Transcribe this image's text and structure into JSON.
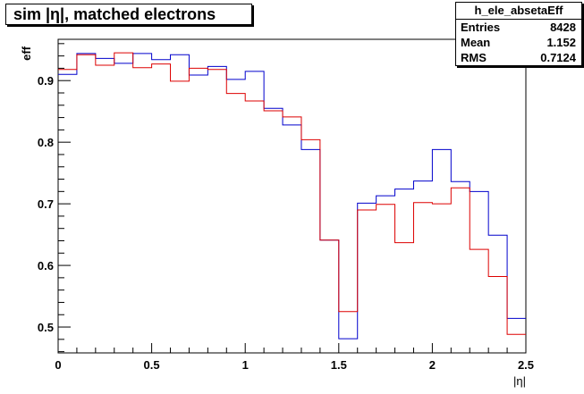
{
  "chart_data": {
    "type": "line",
    "title": "sim |η|, matched electrons",
    "xlabel": "|η|",
    "ylabel": "eff",
    "xlim": [
      0,
      2.5
    ],
    "ylim": [
      0.458,
      0.967
    ],
    "x_ticks": [
      {
        "value": 0,
        "label": "0"
      },
      {
        "value": 0.5,
        "label": "0.5"
      },
      {
        "value": 1,
        "label": "1"
      },
      {
        "value": 1.5,
        "label": "1.5"
      },
      {
        "value": 2,
        "label": "2"
      },
      {
        "value": 2.5,
        "label": "2.5"
      }
    ],
    "y_ticks": [
      {
        "value": 0.5,
        "label": "0.5"
      },
      {
        "value": 0.6,
        "label": "0.6"
      },
      {
        "value": 0.7,
        "label": "0.7"
      },
      {
        "value": 0.8,
        "label": "0.8"
      },
      {
        "value": 0.9,
        "label": "0.9"
      }
    ],
    "bin_edges": [
      0,
      0.1,
      0.2,
      0.3,
      0.4,
      0.5,
      0.6,
      0.7,
      0.8,
      0.9,
      1.0,
      1.1,
      1.2,
      1.3,
      1.4,
      1.5,
      1.6,
      1.7,
      1.8,
      1.9,
      2.0,
      2.1,
      2.2,
      2.3,
      2.4,
      2.5
    ],
    "series": [
      {
        "color": "#0000cc",
        "values": [
          0.91,
          0.944,
          0.936,
          0.928,
          0.944,
          0.934,
          0.942,
          0.909,
          0.923,
          0.902,
          0.915,
          0.855,
          0.828,
          0.788,
          0.641,
          0.481,
          0.701,
          0.713,
          0.724,
          0.737,
          0.788,
          0.736,
          0.72,
          0.649,
          0.514
        ]
      },
      {
        "color": "#dd0000",
        "values": [
          0.918,
          0.942,
          0.925,
          0.945,
          0.921,
          0.927,
          0.899,
          0.92,
          0.918,
          0.879,
          0.867,
          0.851,
          0.841,
          0.804,
          0.641,
          0.525,
          0.69,
          0.699,
          0.637,
          0.702,
          0.7,
          0.726,
          0.626,
          0.582,
          0.488
        ]
      }
    ],
    "grid": false,
    "legend": "none"
  },
  "stats": {
    "name": "h_ele_absetaEff",
    "rows": [
      {
        "label": "Entries",
        "value": "8428"
      },
      {
        "label": "Mean",
        "value": "1.152"
      },
      {
        "label": "RMS",
        "value": "0.7124"
      }
    ]
  }
}
